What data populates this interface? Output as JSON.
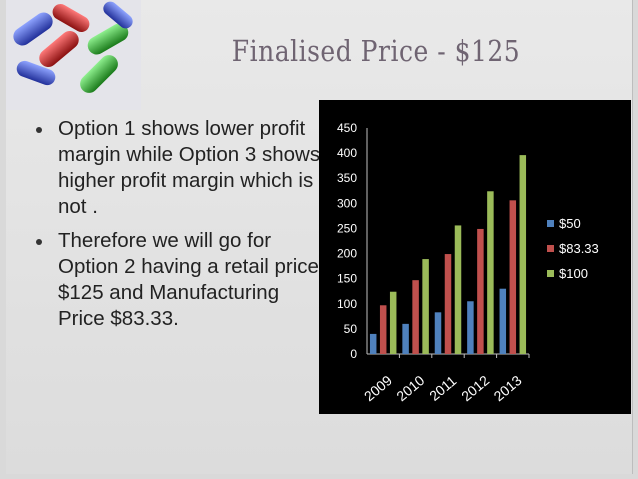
{
  "slide": {
    "title": "Finalised Price - $125",
    "bullets": [
      "Option 1 shows lower profit margin while Option 3 shows higher profit margin which is not .",
      "Therefore we will go for Option 2 having a retail price $125 and Manufacturing Price $83.33."
    ]
  },
  "chart_data": {
    "type": "bar",
    "categories": [
      "2009",
      "2010",
      "2011",
      "2012",
      "2013"
    ],
    "series": [
      {
        "name": "$50",
        "values": [
          40,
          60,
          83,
          105,
          130
        ],
        "color": "#4f81bd"
      },
      {
        "name": "$83.33",
        "values": [
          97,
          147,
          199,
          249,
          306
        ],
        "color": "#c0504d"
      },
      {
        "name": "$100",
        "values": [
          124,
          189,
          256,
          324,
          396
        ],
        "color": "#9bbb59"
      }
    ],
    "ylim": [
      0,
      450
    ],
    "yticks": [
      "0",
      "50",
      "100",
      "150",
      "200",
      "250",
      "300",
      "350",
      "400",
      "450"
    ],
    "legend": "right",
    "grid": false,
    "background": "#000000",
    "text_color": "#ffffff"
  }
}
